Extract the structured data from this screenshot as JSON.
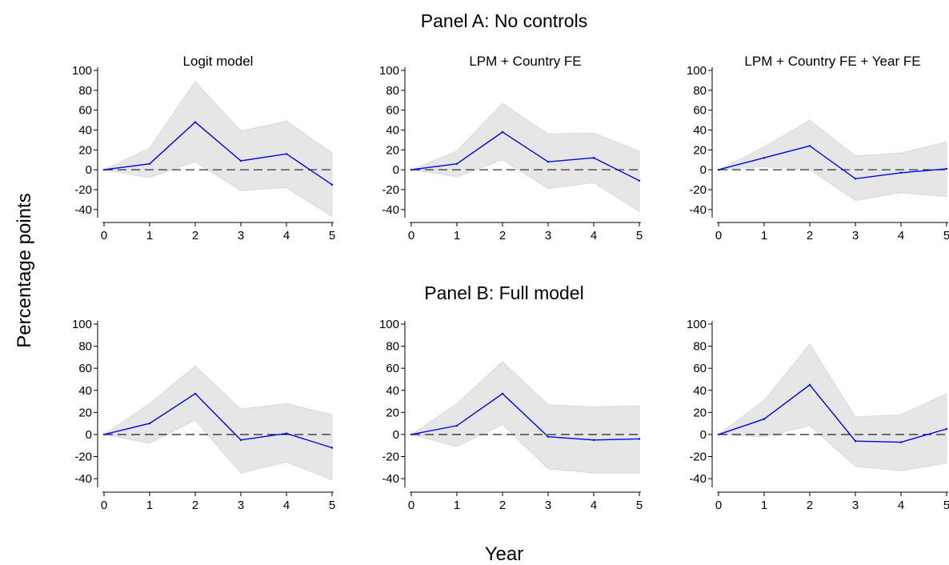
{
  "figure": {
    "ylabel": "Percentage points",
    "xlabel": "Year"
  },
  "panels": [
    {
      "title": "Panel A: No controls"
    },
    {
      "title": "Panel B: Full model"
    }
  ],
  "colors": {
    "line": "#0000ee",
    "ci_band": "#e6e6e6",
    "ci_edge": "#d6d6d6",
    "zero_line": "#333333",
    "axis": "#000000"
  },
  "chart_data": [
    {
      "type": "line",
      "panel": "Panel A: No controls",
      "title": "Logit model",
      "x": [
        0,
        1,
        2,
        3,
        4,
        5
      ],
      "ylim": [
        -45,
        100
      ],
      "xlim": [
        0,
        5
      ],
      "yticks": [
        -40,
        -20,
        0,
        20,
        40,
        60,
        80,
        100
      ],
      "xticks": [
        0,
        1,
        2,
        3,
        4,
        5
      ],
      "y": [
        0,
        6,
        48,
        9,
        16,
        -15
      ],
      "ci_lower": [
        0,
        -8,
        8,
        -21,
        -18,
        -47
      ],
      "ci_upper": [
        0,
        22,
        89,
        39,
        49,
        17
      ],
      "reference_line": 0
    },
    {
      "type": "line",
      "panel": "Panel A: No controls",
      "title": "LPM + Country FE",
      "x": [
        0,
        1,
        2,
        3,
        4,
        5
      ],
      "ylim": [
        -45,
        100
      ],
      "xlim": [
        0,
        5
      ],
      "yticks": [
        -40,
        -20,
        0,
        20,
        40,
        60,
        80,
        100
      ],
      "xticks": [
        0,
        1,
        2,
        3,
        4,
        5
      ],
      "y": [
        0,
        6,
        38,
        8,
        12,
        -11
      ],
      "ci_lower": [
        0,
        -7,
        10,
        -19,
        -13,
        -42
      ],
      "ci_upper": [
        0,
        19,
        67,
        36,
        37,
        19
      ],
      "reference_line": 0
    },
    {
      "type": "line",
      "panel": "Panel A: No controls",
      "title": "LPM + Country FE + Year FE",
      "x": [
        0,
        1,
        2,
        3,
        4,
        5
      ],
      "ylim": [
        -45,
        100
      ],
      "xlim": [
        0,
        5
      ],
      "yticks": [
        -40,
        -20,
        0,
        20,
        40,
        60,
        80,
        100
      ],
      "xticks": [
        0,
        1,
        2,
        3,
        4,
        5
      ],
      "y": [
        0,
        12,
        24,
        -9,
        -3,
        1
      ],
      "ci_lower": [
        0,
        3,
        0,
        -31,
        -23,
        -27
      ],
      "ci_upper": [
        0,
        23,
        50,
        14,
        17,
        28
      ],
      "reference_line": 0
    },
    {
      "type": "line",
      "panel": "Panel B: Full model",
      "title": "",
      "x": [
        0,
        1,
        2,
        3,
        4,
        5
      ],
      "ylim": [
        -45,
        100
      ],
      "xlim": [
        0,
        5
      ],
      "yticks": [
        -40,
        -20,
        0,
        20,
        40,
        60,
        80,
        100
      ],
      "xticks": [
        0,
        1,
        2,
        3,
        4,
        5
      ],
      "y": [
        0,
        10,
        37,
        -5,
        1,
        -12
      ],
      "ci_lower": [
        0,
        -8,
        13,
        -35,
        -25,
        -41
      ],
      "ci_upper": [
        0,
        28,
        62,
        23,
        28,
        18
      ],
      "reference_line": 0
    },
    {
      "type": "line",
      "panel": "Panel B: Full model",
      "title": "",
      "x": [
        0,
        1,
        2,
        3,
        4,
        5
      ],
      "ylim": [
        -45,
        100
      ],
      "xlim": [
        0,
        5
      ],
      "yticks": [
        -40,
        -20,
        0,
        20,
        40,
        60,
        80,
        100
      ],
      "xticks": [
        0,
        1,
        2,
        3,
        4,
        5
      ],
      "y": [
        0,
        8,
        37,
        -2,
        -5,
        -4
      ],
      "ci_lower": [
        0,
        -11,
        9,
        -31,
        -35,
        -35
      ],
      "ci_upper": [
        0,
        28,
        66,
        27,
        25,
        26
      ],
      "reference_line": 0
    },
    {
      "type": "line",
      "panel": "Panel B: Full model",
      "title": "",
      "x": [
        0,
        1,
        2,
        3,
        4,
        5
      ],
      "ylim": [
        -45,
        100
      ],
      "xlim": [
        0,
        5
      ],
      "yticks": [
        -40,
        -20,
        0,
        20,
        40,
        60,
        80,
        100
      ],
      "xticks": [
        0,
        1,
        2,
        3,
        4,
        5
      ],
      "y": [
        0,
        14,
        45,
        -6,
        -7,
        5
      ],
      "ci_lower": [
        0,
        -2,
        8,
        -29,
        -33,
        -26
      ],
      "ci_upper": [
        0,
        31,
        82,
        16,
        18,
        37
      ],
      "reference_line": 0
    }
  ]
}
